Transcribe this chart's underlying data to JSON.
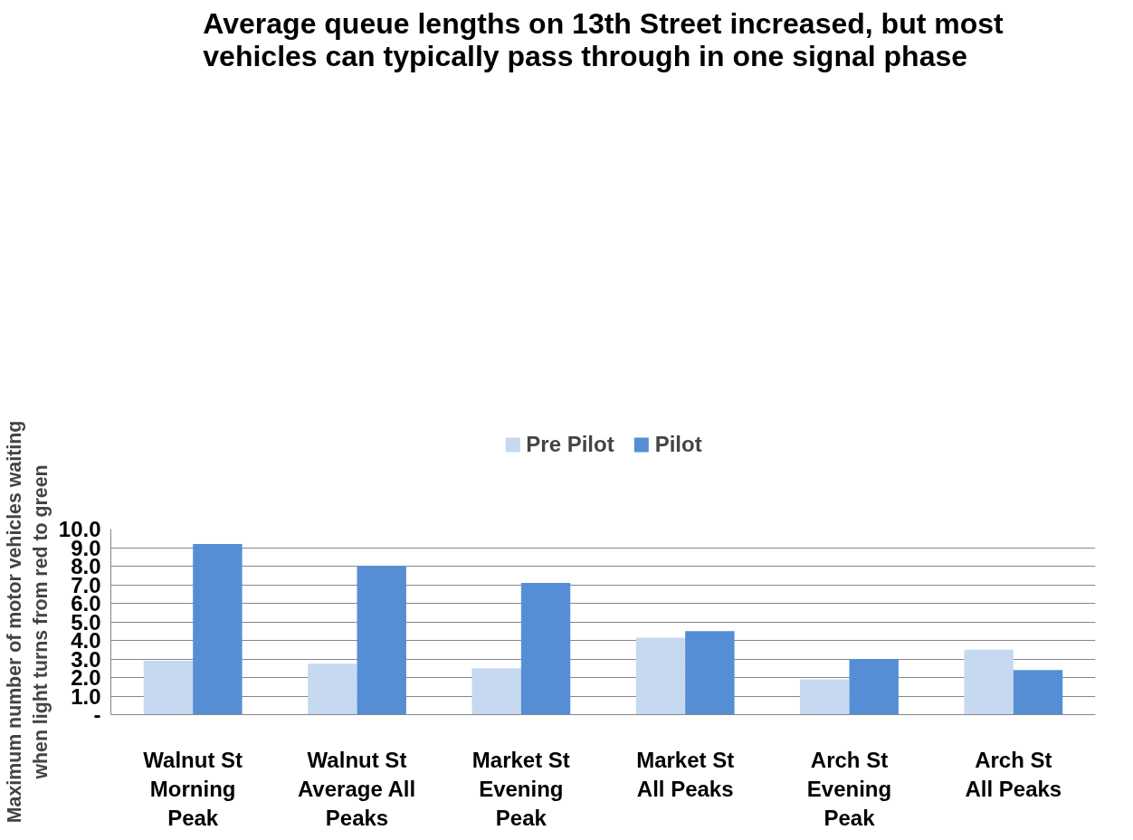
{
  "chart_data": {
    "type": "bar",
    "title": "Average queue lengths on 13th Street increased, but most vehicles can typically pass through in one signal phase",
    "ylabel": "Maximum number of motor vehicles waiting when light turns from red to green",
    "categories": [
      "Walnut St Morning Peak",
      "Walnut St Average All Peaks",
      "Market St Evening Peak",
      "Market St All Peaks",
      "Arch St Evening Peak",
      "Arch St All Peaks"
    ],
    "series": [
      {
        "name": "Pre Pilot",
        "color": "#c6d9f1",
        "values": [
          2.9,
          2.75,
          2.5,
          4.15,
          1.9,
          3.5
        ]
      },
      {
        "name": "Pilot",
        "color": "#558ed5",
        "values": [
          9.2,
          8.0,
          7.1,
          4.5,
          3.0,
          2.4
        ]
      }
    ],
    "ylim": [
      0,
      10
    ],
    "yticks": [
      {
        "value": 0,
        "label": "-"
      },
      {
        "value": 1,
        "label": "1.0"
      },
      {
        "value": 2,
        "label": "2.0"
      },
      {
        "value": 3,
        "label": "3.0"
      },
      {
        "value": 4,
        "label": "4.0"
      },
      {
        "value": 5,
        "label": "5.0"
      },
      {
        "value": 6,
        "label": "6.0"
      },
      {
        "value": 7,
        "label": "7.0"
      },
      {
        "value": 8,
        "label": "8.0"
      },
      {
        "value": 9,
        "label": "9.0"
      },
      {
        "value": 10,
        "label": "10.0"
      }
    ],
    "grid": "y",
    "legend": "top"
  }
}
